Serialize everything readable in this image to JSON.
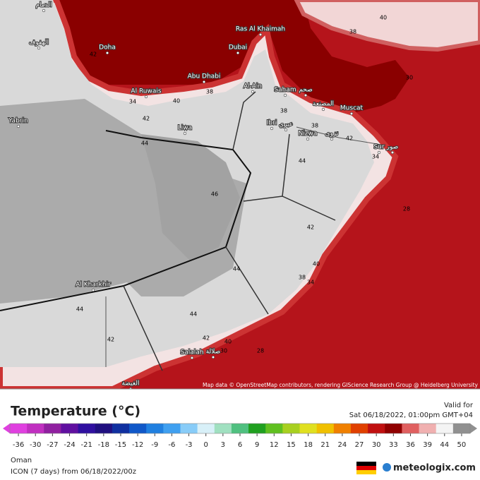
{
  "map": {
    "places": [
      "Doha",
      "Ras Al Khaimah",
      "Dubai",
      "Abu Dhabi",
      "Al Ruwais",
      "Al-Ain",
      "Saham",
      "Muscat",
      "Ibri",
      "Nizwa",
      "Sur",
      "Liwa",
      "Yabrin",
      "Al Kharkhir",
      "Salalah",
      "الدمام",
      "الهفوف",
      "صحم",
      "المصنعة",
      "عبري",
      "نزوى",
      "صور",
      "صلالة",
      "الغيضة"
    ],
    "contour_labels": [
      40,
      38,
      30,
      42,
      38,
      40,
      34,
      42,
      44,
      46,
      38,
      38,
      42,
      44,
      34,
      28,
      42,
      40,
      44,
      38,
      34,
      44,
      44,
      42,
      42,
      40,
      30,
      28
    ],
    "attribution": "Map data © OpenStreetMap contributors, rendering GIScience Research Group @ Heidelberg University"
  },
  "legend": {
    "title": "Temperature (°C)",
    "valid_label": "Valid for",
    "valid_time": "Sat 06/18/2022, 01:00pm GMT+04",
    "colorbar": {
      "ticks": [
        -36,
        -30,
        -27,
        -24,
        -21,
        -18,
        -15,
        -12,
        -9,
        -6,
        -3,
        0,
        3,
        6,
        9,
        12,
        15,
        18,
        21,
        24,
        27,
        30,
        33,
        36,
        39,
        44,
        50
      ],
      "colors": [
        "#e040e0",
        "#c030c0",
        "#9020a0",
        "#6010a0",
        "#3010a0",
        "#201080",
        "#1030a0",
        "#1058c8",
        "#2080e0",
        "#40a0f0",
        "#88ccf8",
        "#d8f0f8",
        "#a0e0c0",
        "#50c080",
        "#20a020",
        "#60c020",
        "#a8d020",
        "#e0e020",
        "#f0c000",
        "#f08000",
        "#e04000",
        "#c01010",
        "#900000",
        "#e06060",
        "#f0b0b0",
        "#f4f4f4",
        "#909090"
      ]
    },
    "region": "Oman",
    "model": "ICON (7 days) from 06/18/2022/00z",
    "brand": "meteologix.com"
  }
}
